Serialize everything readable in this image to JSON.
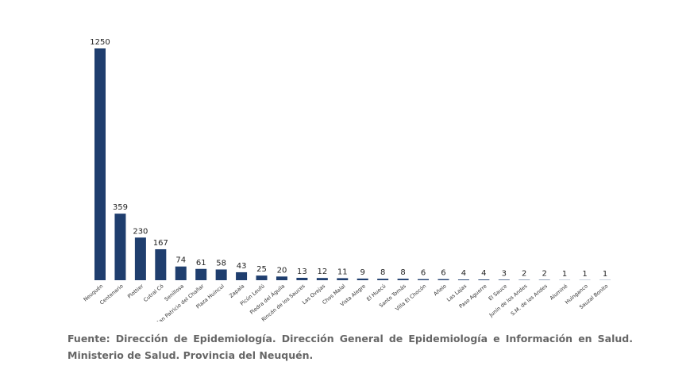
{
  "chart_data": {
    "type": "bar",
    "categories": [
      "Neuquén",
      "Centenario",
      "Plottier",
      "Cutral Có",
      "Senillosa",
      "San Patricio del Chañar",
      "Plaza Huincul",
      "Zapala",
      "Picún Leufú",
      "Piedra del Águila",
      "Rincón de los Sauces",
      "Las Ovejas",
      "Chos Malal",
      "Vista Alegre",
      "El Huecú",
      "Santo Tomás",
      "Villa El Chocón",
      "Añelo",
      "Las Lajas",
      "Paso Aguerre",
      "El Sauce",
      "Junín de los Andes",
      "S.M. de los Andes",
      "Aluminé",
      "Huinganco",
      "Sauzal Bonito"
    ],
    "values": [
      1250,
      359,
      230,
      167,
      74,
      61,
      58,
      43,
      25,
      20,
      13,
      12,
      11,
      9,
      8,
      8,
      6,
      6,
      4,
      4,
      3,
      2,
      2,
      1,
      1,
      1
    ],
    "color": "#1f3e6e"
  },
  "source": "Fuente: Dirección de Epidemiología. Dirección General de Epidemiología e Información en Salud. Ministerio de Salud. Provincia del Neuquén."
}
